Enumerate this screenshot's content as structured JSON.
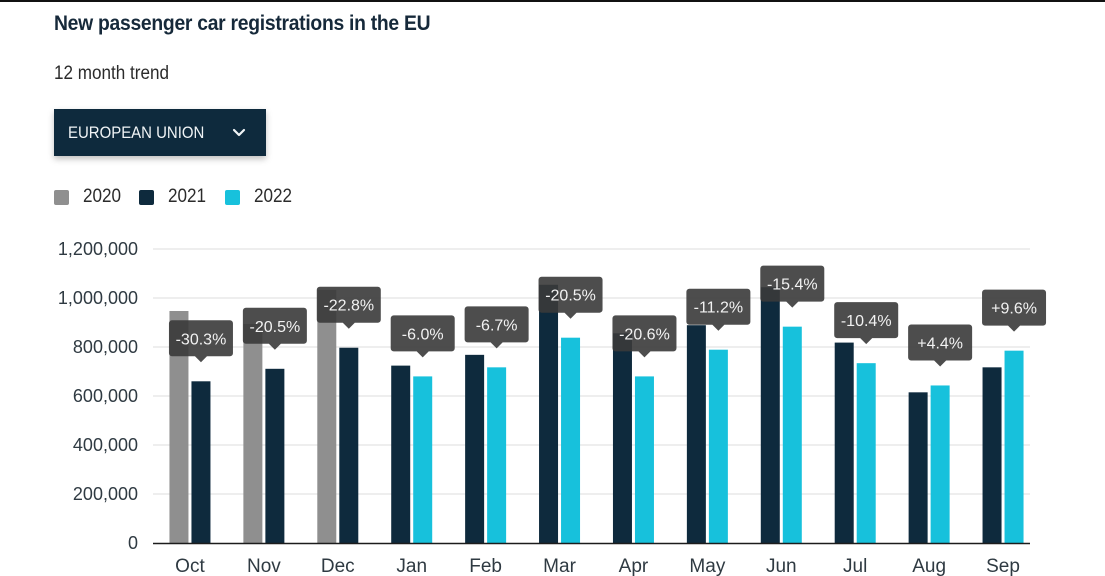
{
  "header": {
    "title": "New passenger car registrations in the EU",
    "subtitle": "12 month trend"
  },
  "region_selector": {
    "selected": "EUROPEAN UNION",
    "icon": "chevron-down-icon"
  },
  "colors": {
    "2020": "#8f8f8f",
    "2021": "#0e2a3d",
    "2022": "#17c1dc",
    "tooltip_bg": "#3a3a3a",
    "gridline": "#e4e4e4",
    "axis": "#1c1c1c"
  },
  "chart_data": {
    "type": "bar",
    "title": "New passenger car registrations in the EU",
    "subtitle": "12 month trend",
    "xlabel": "",
    "ylabel": "",
    "ylim": [
      0,
      1200000
    ],
    "yticks": [
      0,
      200000,
      400000,
      600000,
      800000,
      1000000,
      1200000
    ],
    "ytick_labels": [
      "0",
      "200,000",
      "400,000",
      "600,000",
      "800,000",
      "1,000,000",
      "1,200,000"
    ],
    "grid": true,
    "legend": {
      "placement": "top-left",
      "entries": [
        "2020",
        "2021",
        "2022"
      ]
    },
    "categories": [
      "Oct",
      "Nov",
      "Dec",
      "Jan",
      "Feb",
      "Mar",
      "Apr",
      "May",
      "Jun",
      "Jul",
      "Aug",
      "Sep"
    ],
    "series": [
      {
        "name": "2020",
        "values": [
          947000,
          894000,
          1033000,
          null,
          null,
          null,
          null,
          null,
          null,
          null,
          null,
          null
        ]
      },
      {
        "name": "2021",
        "values": [
          660000,
          711000,
          797000,
          724000,
          768000,
          1054000,
          856000,
          889000,
          1044000,
          818000,
          615000,
          717000
        ]
      },
      {
        "name": "2022",
        "values": [
          null,
          null,
          null,
          680000,
          717000,
          838000,
          680000,
          789000,
          883000,
          734000,
          643000,
          785000
        ]
      }
    ],
    "annotations": [
      "-30.3%",
      "-20.5%",
      "-22.8%",
      "-6.0%",
      "-6.7%",
      "-20.5%",
      "-20.6%",
      "-11.2%",
      "-15.4%",
      "-10.4%",
      "+4.4%",
      "+9.6%"
    ]
  }
}
